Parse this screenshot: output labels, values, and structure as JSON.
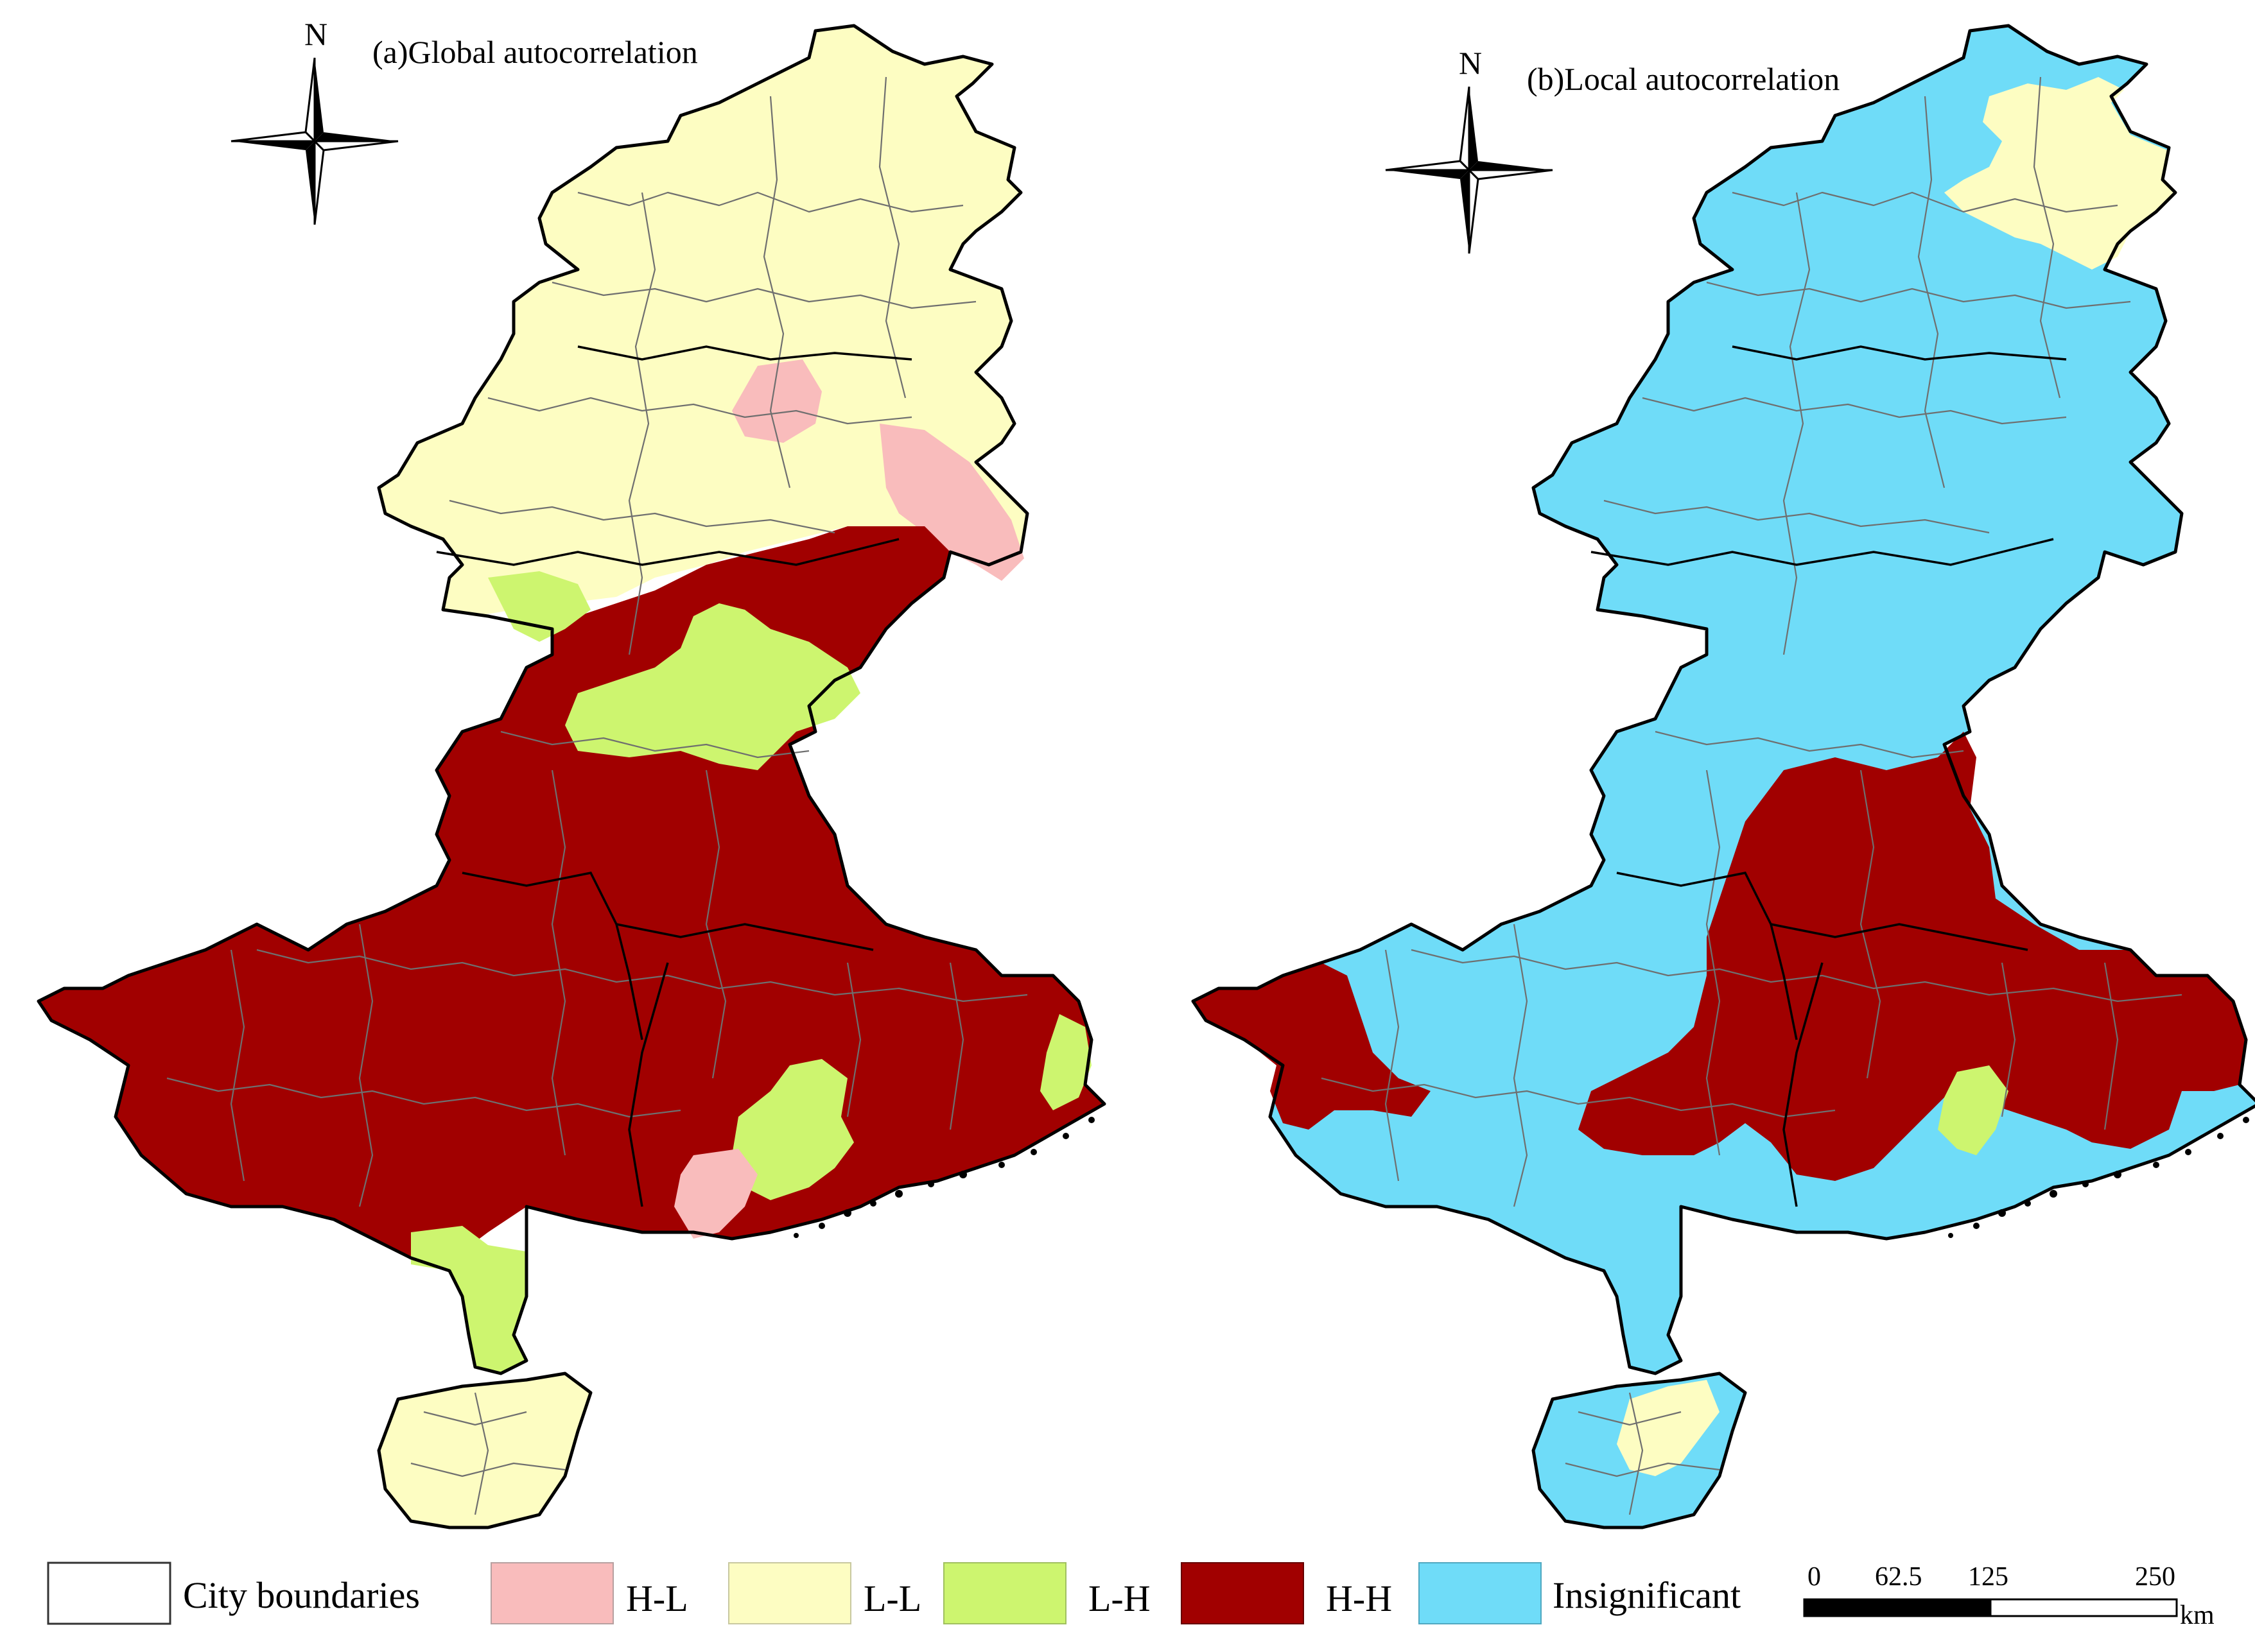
{
  "panels": [
    {
      "id": "a",
      "title": "(a)Global autocorrelation",
      "north_label": "N"
    },
    {
      "id": "b",
      "title": "(b)Local autocorrelation",
      "north_label": "N"
    }
  ],
  "legend": [
    {
      "label": "City boundaries",
      "color": "#ffffff"
    },
    {
      "label": "H-L",
      "color": "#f9bcbc"
    },
    {
      "label": "L-L",
      "color": "#fdfdc2"
    },
    {
      "label": "L-H",
      "color": "#cdf56f"
    },
    {
      "label": "H-H",
      "color": "#a10000"
    },
    {
      "label": "Insignificant",
      "color": "#6fdcf8"
    }
  ],
  "scale_bar": {
    "ticks": [
      "0",
      "62.5",
      "125",
      "250"
    ],
    "unit": "km"
  },
  "colors": {
    "HL": "#f9bcbc",
    "LL": "#fdfdc2",
    "LH": "#cdf56f",
    "HH": "#a10000",
    "NS": "#6fdcf8"
  }
}
